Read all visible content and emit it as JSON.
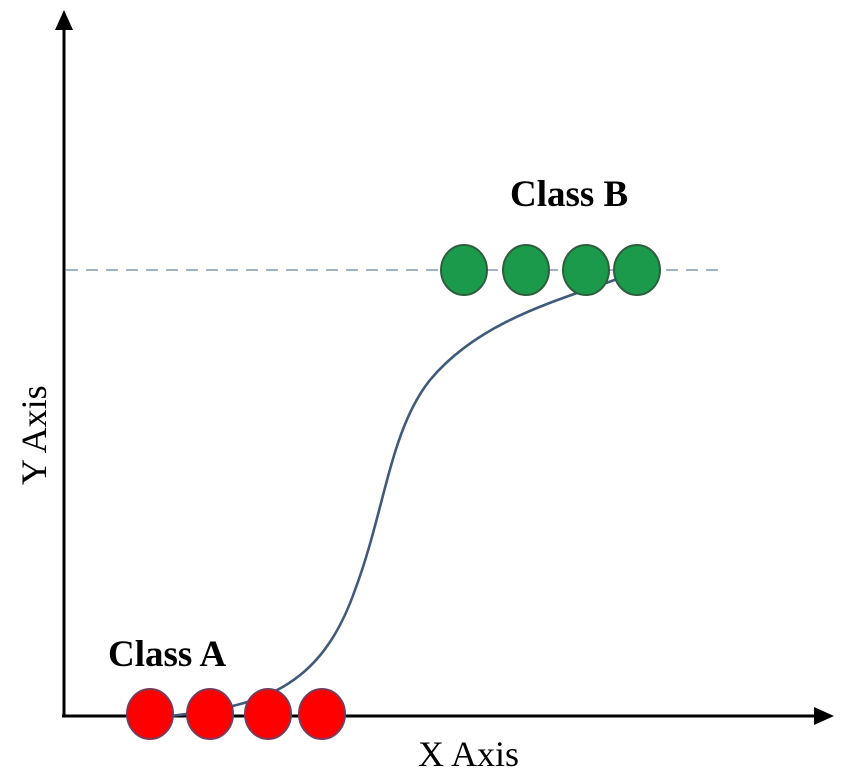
{
  "chart_data": {
    "type": "scatter",
    "title": "",
    "xlabel": "X Axis",
    "ylabel": "Y Axis",
    "series": [
      {
        "name": "Class A",
        "color": "#ff0000",
        "count": 4,
        "level": 0
      },
      {
        "name": "Class B",
        "color": "#1a9a4a",
        "count": 4,
        "level": 1
      }
    ],
    "curve": "sigmoid",
    "grid": false
  }
}
